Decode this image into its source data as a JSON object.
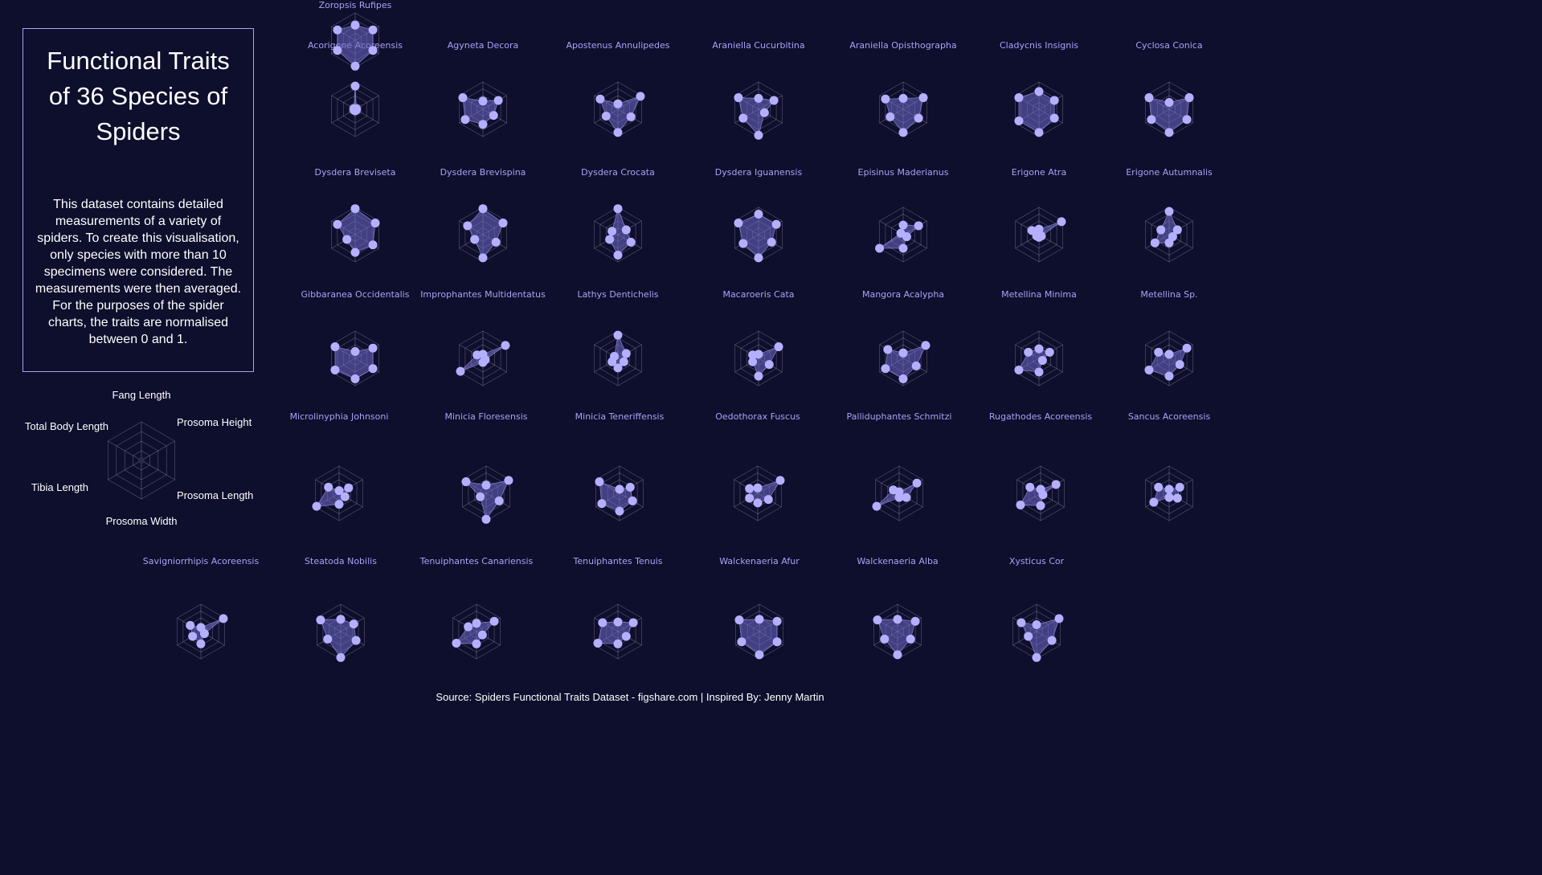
{
  "header": {
    "title": "Functional Traits of 36 Species of Spiders",
    "description": "This dataset contains detailed measurements of a variety of spiders. To create this visualisation, only species with more than 10 specimens were considered. The measurements were then averaged. For the purposes of the spider charts, the traits are normalised between 0 and 1."
  },
  "footer": {
    "source": "Source: Spiders Functional Traits Dataset - figshare.com | Inspired By: Jenny Martin"
  },
  "colors": {
    "background": "#0e0e2d",
    "accent": "#b4b0ff",
    "fill": "#6e69c8",
    "grid": "#8a8a9a"
  },
  "chart_data": {
    "type": "radar",
    "axes": [
      "Fang Length",
      "Prosoma Height",
      "Prosoma Length",
      "Prosoma Width",
      "Tibia Length",
      "Total Body Length"
    ],
    "range": [
      0,
      1
    ],
    "species": [
      {
        "name": "Acorigone Acoreensis",
        "values": [
          0.85,
          0.05,
          0.05,
          0.05,
          0.05,
          0.05
        ]
      },
      {
        "name": "Agyneta Decora",
        "values": [
          0.3,
          0.65,
          0.45,
          0.55,
          0.75,
          0.85
        ]
      },
      {
        "name": "Apostenus Annulipedes",
        "values": [
          0.2,
          0.95,
          0.55,
          0.85,
          0.5,
          0.75
        ]
      },
      {
        "name": "Araniella Cucurbitina",
        "values": [
          0.4,
          0.65,
          0.25,
          0.95,
          0.65,
          0.85
        ]
      },
      {
        "name": "Araniella Opisthographa",
        "values": [
          0.4,
          0.85,
          0.65,
          0.85,
          0.55,
          0.75
        ]
      },
      {
        "name": "Cladycnis Insignis",
        "values": [
          0.65,
          0.65,
          0.65,
          0.85,
          0.85,
          0.85
        ]
      },
      {
        "name": "Cyclosa Conica",
        "values": [
          0.25,
          0.85,
          0.75,
          0.85,
          0.75,
          0.85
        ]
      },
      {
        "name": "Dysdera Breviseta",
        "values": [
          0.95,
          0.85,
          0.75,
          0.65,
          0.35,
          0.75
        ]
      },
      {
        "name": "Dysdera Brevispina",
        "values": [
          0.95,
          0.85,
          0.55,
          0.85,
          0.35,
          0.65
        ]
      },
      {
        "name": "Dysdera Crocata",
        "values": [
          0.95,
          0.35,
          0.55,
          0.75,
          0.35,
          0.25
        ]
      },
      {
        "name": "Dysdera Iguanensis",
        "values": [
          0.75,
          0.75,
          0.55,
          0.85,
          0.65,
          0.85
        ]
      },
      {
        "name": "Episinus Maderianus",
        "values": [
          0.35,
          0.65,
          0.15,
          0.5,
          1.0,
          0.1
        ]
      },
      {
        "name": "Erigone Atra",
        "values": [
          0.2,
          0.95,
          0.1,
          0.1,
          0.1,
          0.3
        ]
      },
      {
        "name": "Erigone Autumnalis",
        "values": [
          0.85,
          0.35,
          0.15,
          0.3,
          0.6,
          0.35
        ]
      },
      {
        "name": "Gibbaranea Occidentalis",
        "values": [
          0.25,
          0.75,
          0.75,
          0.75,
          0.85,
          0.85
        ]
      },
      {
        "name": "Improphantes Multidentatus",
        "values": [
          0.15,
          0.95,
          0.1,
          0.15,
          0.95,
          0.25
        ]
      },
      {
        "name": "Lathys Dentichelis",
        "values": [
          0.85,
          0.35,
          0.25,
          0.35,
          0.25,
          0.15
        ]
      },
      {
        "name": "Macaroeris Cata",
        "values": [
          0.15,
          0.85,
          0.45,
          0.65,
          0.25,
          0.25
        ]
      },
      {
        "name": "Mangora Acalypha",
        "values": [
          0.2,
          0.95,
          0.55,
          0.75,
          0.75,
          0.65
        ]
      },
      {
        "name": "Metellina Minima",
        "values": [
          0.35,
          0.45,
          0.15,
          0.5,
          0.85,
          0.45
        ]
      },
      {
        "name": "Metellina Sp.",
        "values": [
          0.15,
          0.75,
          0.45,
          0.65,
          0.85,
          0.45
        ]
      },
      {
        "name": "Microlinyphia Johnsoni",
        "values": [
          0.1,
          0.4,
          0.25,
          0.4,
          0.95,
          0.45
        ]
      },
      {
        "name": "Minicia Floresensis",
        "values": [
          0.3,
          0.95,
          0.55,
          0.95,
          0.25,
          0.85
        ]
      },
      {
        "name": "Minicia Teneriffensis",
        "values": [
          0.15,
          0.45,
          0.55,
          0.65,
          0.75,
          0.85
        ]
      },
      {
        "name": "Oedothorax Fuscus",
        "values": [
          0.2,
          0.95,
          0.45,
          0.35,
          0.35,
          0.35
        ]
      },
      {
        "name": "Palliduphantes Schmitzi",
        "values": [
          0.05,
          0.75,
          0.3,
          0.15,
          0.95,
          0.25
        ]
      },
      {
        "name": "Rugathodes Acoreensis",
        "values": [
          0.15,
          0.65,
          0.1,
          0.45,
          0.85,
          0.45
        ]
      },
      {
        "name": "Sancus Acoreensis",
        "values": [
          0.15,
          0.45,
          0.35,
          0.15,
          0.65,
          0.45
        ]
      },
      {
        "name": "Savigniorrhipis Acoreensis",
        "values": [
          0.15,
          0.95,
          0.15,
          0.45,
          0.35,
          0.45
        ]
      },
      {
        "name": "Steatoda Nobilis",
        "values": [
          0.45,
          0.55,
          0.65,
          0.95,
          0.55,
          0.85
        ]
      },
      {
        "name": "Tenuiphantes Canariensis",
        "values": [
          0.3,
          0.75,
          0.25,
          0.45,
          0.85,
          0.35
        ]
      },
      {
        "name": "Tenuiphantes Tenuis",
        "values": [
          0.35,
          0.65,
          0.35,
          0.45,
          0.85,
          0.65
        ]
      },
      {
        "name": "Walckenaeria Afur",
        "values": [
          0.45,
          0.75,
          0.75,
          0.85,
          0.75,
          0.85
        ]
      },
      {
        "name": "Walckenaeria Alba",
        "values": [
          0.45,
          0.75,
          0.55,
          0.85,
          0.55,
          0.85
        ]
      },
      {
        "name": "Xysticus Cor",
        "values": [
          0.25,
          0.95,
          0.65,
          0.95,
          0.35,
          0.65
        ]
      },
      {
        "name": "Zoropsis Rufipes",
        "values": [
          0.55,
          0.75,
          0.75,
          0.95,
          0.75,
          0.75
        ]
      }
    ]
  }
}
